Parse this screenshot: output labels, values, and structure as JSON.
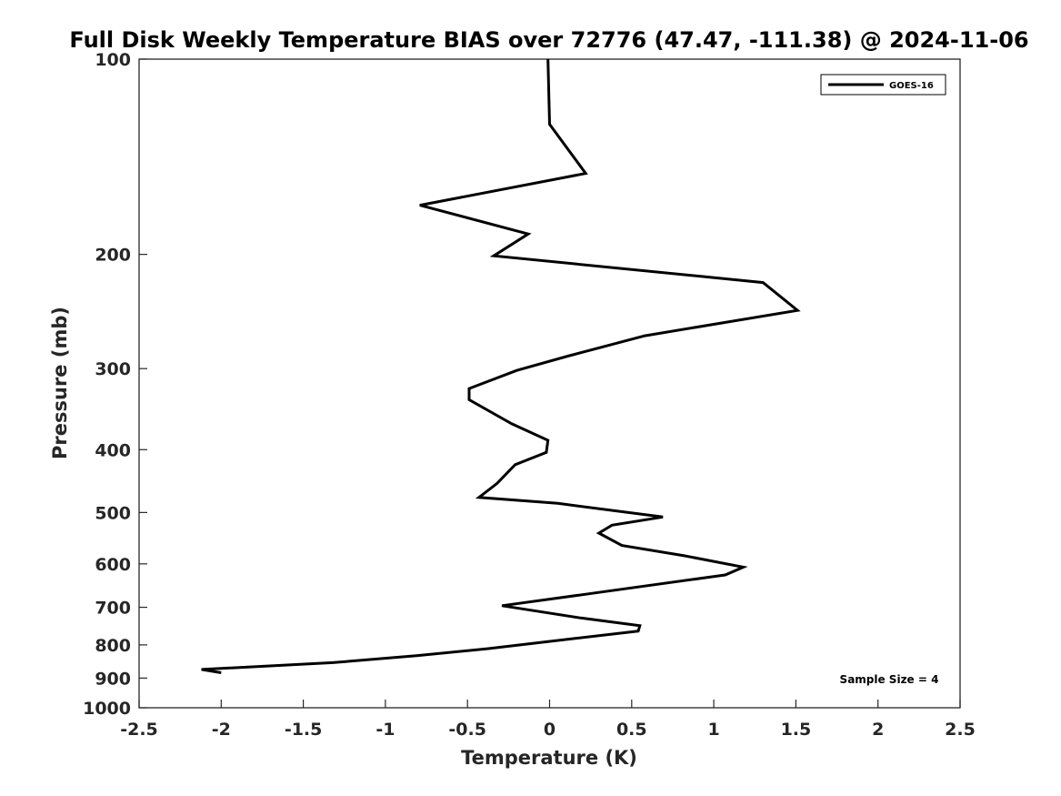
{
  "chart_data": {
    "type": "line",
    "title": "Full Disk Weekly Temperature BIAS over 72776 (47.47, -111.38) @ 2024-11-06",
    "xlabel": "Temperature (K)",
    "ylabel": "Pressure (mb)",
    "xlim": [
      -2.5,
      2.5
    ],
    "ylim": [
      100,
      1000
    ],
    "y_scale": "log",
    "y_reversed": true,
    "x_ticks": [
      -2.5,
      -2,
      -1.5,
      -1,
      -0.5,
      0,
      0.5,
      1,
      1.5,
      2,
      2.5
    ],
    "x_tick_labels": [
      "-2.5",
      "-2",
      "-1.5",
      "-1",
      "-0.5",
      "0",
      "0.5",
      "1",
      "1.5",
      "2",
      "2.5"
    ],
    "y_ticks": [
      100,
      200,
      300,
      400,
      500,
      600,
      700,
      800,
      900,
      1000
    ],
    "y_tick_labels": [
      "100",
      "200",
      "300",
      "400",
      "500",
      "600",
      "700",
      "800",
      "900",
      "1000"
    ],
    "grid": false,
    "legend": {
      "position": "top-right",
      "entries": [
        "GOES-16"
      ]
    },
    "annotation": "Sample Size = 4",
    "series": [
      {
        "name": "GOES-16",
        "color": "#000000",
        "points": [
          [
            -0.01,
            100
          ],
          [
            0.0,
            126
          ],
          [
            0.22,
            150
          ],
          [
            -0.79,
            168
          ],
          [
            -0.13,
            186
          ],
          [
            -0.34,
            201
          ],
          [
            1.3,
            221
          ],
          [
            1.51,
            244
          ],
          [
            0.58,
            267
          ],
          [
            0.11,
            287
          ],
          [
            -0.2,
            302
          ],
          [
            -0.49,
            322
          ],
          [
            -0.49,
            335
          ],
          [
            -0.23,
            365
          ],
          [
            -0.01,
            387
          ],
          [
            -0.02,
            404
          ],
          [
            -0.21,
            422
          ],
          [
            -0.32,
            451
          ],
          [
            -0.43,
            474
          ],
          [
            0.05,
            484
          ],
          [
            0.69,
            508
          ],
          [
            0.38,
            523
          ],
          [
            0.3,
            538
          ],
          [
            0.44,
            562
          ],
          [
            0.82,
            583
          ],
          [
            1.18,
            607
          ],
          [
            1.07,
            624
          ],
          [
            0.28,
            665
          ],
          [
            -0.29,
            696
          ],
          [
            0.19,
            727
          ],
          [
            0.55,
            747
          ],
          [
            0.54,
            762
          ],
          [
            0.15,
            782
          ],
          [
            -0.38,
            811
          ],
          [
            -0.81,
            831
          ],
          [
            -1.32,
            852
          ],
          [
            -2.12,
            873
          ],
          [
            -2.0,
            883
          ]
        ]
      }
    ]
  }
}
